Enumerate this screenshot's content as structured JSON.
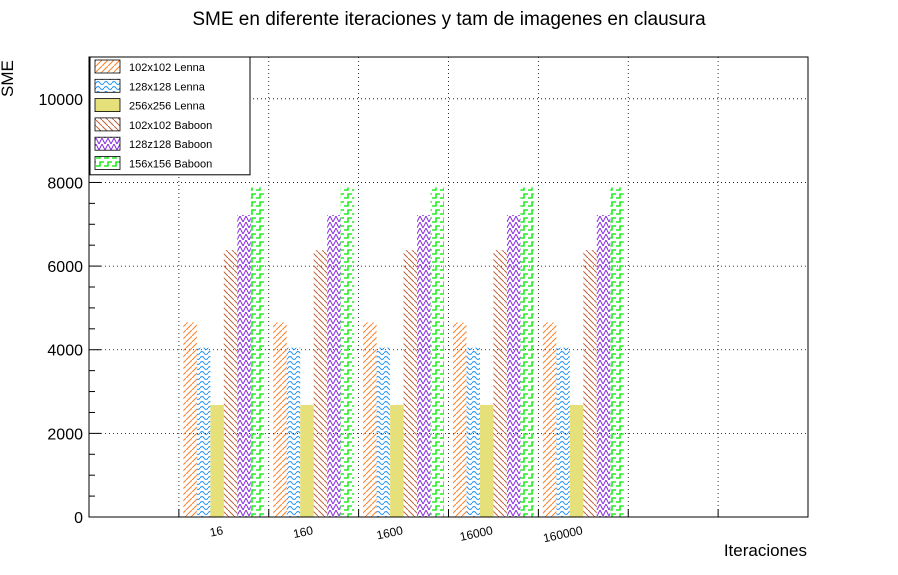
{
  "chart_data": {
    "type": "bar",
    "title": "SME en diferente iteraciones y tam de imagenes en clausura",
    "xlabel": "Iteraciones",
    "ylabel": "SME",
    "ylim": [
      0,
      11000
    ],
    "yticks": [
      0,
      2000,
      4000,
      6000,
      8000,
      10000
    ],
    "grid": true,
    "legend_position": "top-left",
    "categories": [
      "",
      "16",
      "160",
      "1600",
      "16000",
      "160000",
      "",
      ""
    ],
    "series": [
      {
        "name": "102x102 Lenna",
        "color": "#ff7f2a",
        "pattern": "diag-up",
        "values": [
          0,
          4650,
          4650,
          4650,
          4650,
          4650,
          0,
          0
        ]
      },
      {
        "name": "128x128 Lenna",
        "color": "#1e90ff",
        "pattern": "wave",
        "values": [
          0,
          4050,
          4050,
          4050,
          4050,
          4050,
          0,
          0
        ]
      },
      {
        "name": "256x256 Lenna",
        "color": "#e6e07a",
        "pattern": "solid",
        "values": [
          0,
          2680,
          2680,
          2680,
          2680,
          2680,
          0,
          0
        ]
      },
      {
        "name": "102x102 Baboon",
        "color": "#c0623a",
        "pattern": "diag-down",
        "values": [
          0,
          6380,
          6380,
          6380,
          6380,
          6380,
          0,
          0
        ]
      },
      {
        "name": "128z128 Baboon",
        "color": "#8a2be2",
        "pattern": "zigzag",
        "values": [
          0,
          7220,
          7220,
          7220,
          7220,
          7220,
          0,
          0
        ]
      },
      {
        "name": "156x156 Baboon",
        "color": "#22ee22",
        "pattern": "steps",
        "values": [
          0,
          7880,
          7880,
          7880,
          7880,
          7880,
          0,
          0
        ]
      }
    ]
  }
}
